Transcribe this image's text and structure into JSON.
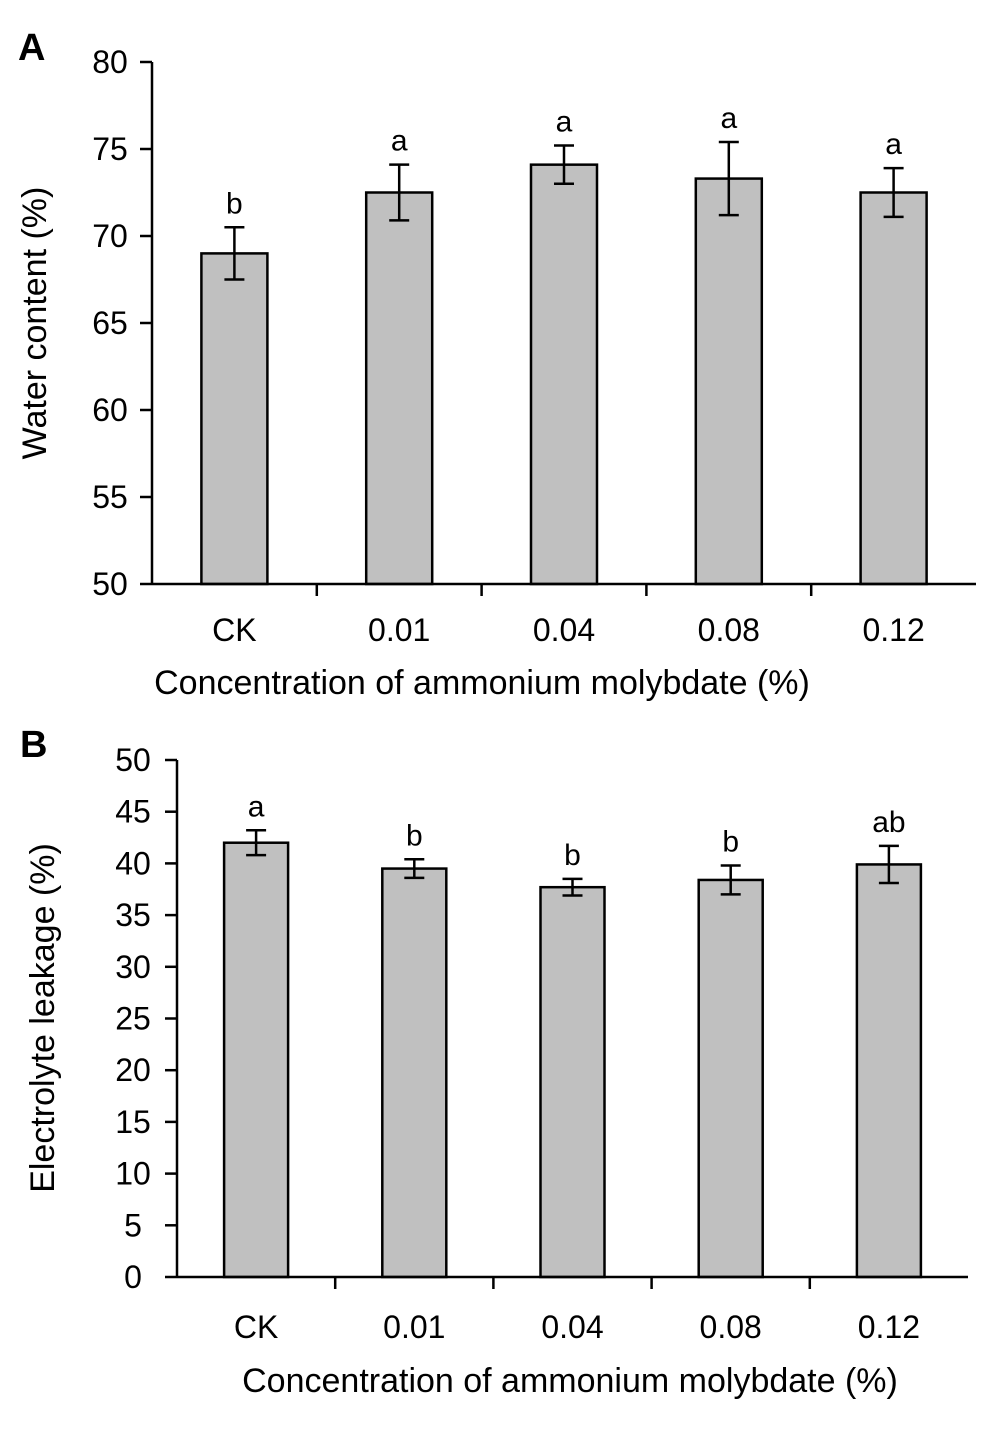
{
  "chart_data": [
    {
      "type": "bar",
      "panel_label": "A",
      "xlabel": "Concentration of ammonium molybdate (%)",
      "ylabel": "Water content (%)",
      "categories": [
        "CK",
        "0.01",
        "0.04",
        "0.08",
        "0.12"
      ],
      "values": [
        69.0,
        72.5,
        74.1,
        73.3,
        72.5
      ],
      "errors": [
        1.5,
        1.6,
        1.1,
        2.1,
        1.4
      ],
      "significance": [
        "b",
        "a",
        "a",
        "a",
        "a"
      ],
      "ylim": [
        50,
        80
      ],
      "yticks": [
        "50",
        "55",
        "60",
        "65",
        "70",
        "75",
        "80"
      ],
      "bar_color": "#c0c0c0",
      "grid": false
    },
    {
      "type": "bar",
      "panel_label": "B",
      "xlabel": "Concentration of ammonium molybdate (%)",
      "ylabel": "Electrolyte leakage (%)",
      "categories": [
        "CK",
        "0.01",
        "0.04",
        "0.08",
        "0.12"
      ],
      "values": [
        42.0,
        39.5,
        37.7,
        38.4,
        39.9
      ],
      "errors": [
        1.2,
        0.9,
        0.8,
        1.4,
        1.8
      ],
      "significance": [
        "a",
        "b",
        "b",
        "b",
        "ab"
      ],
      "ylim": [
        0,
        50
      ],
      "yticks": [
        "0",
        "5",
        "10",
        "15",
        "20",
        "25",
        "30",
        "35",
        "40",
        "45",
        "50"
      ],
      "bar_color": "#c0c0c0",
      "grid": false
    }
  ]
}
